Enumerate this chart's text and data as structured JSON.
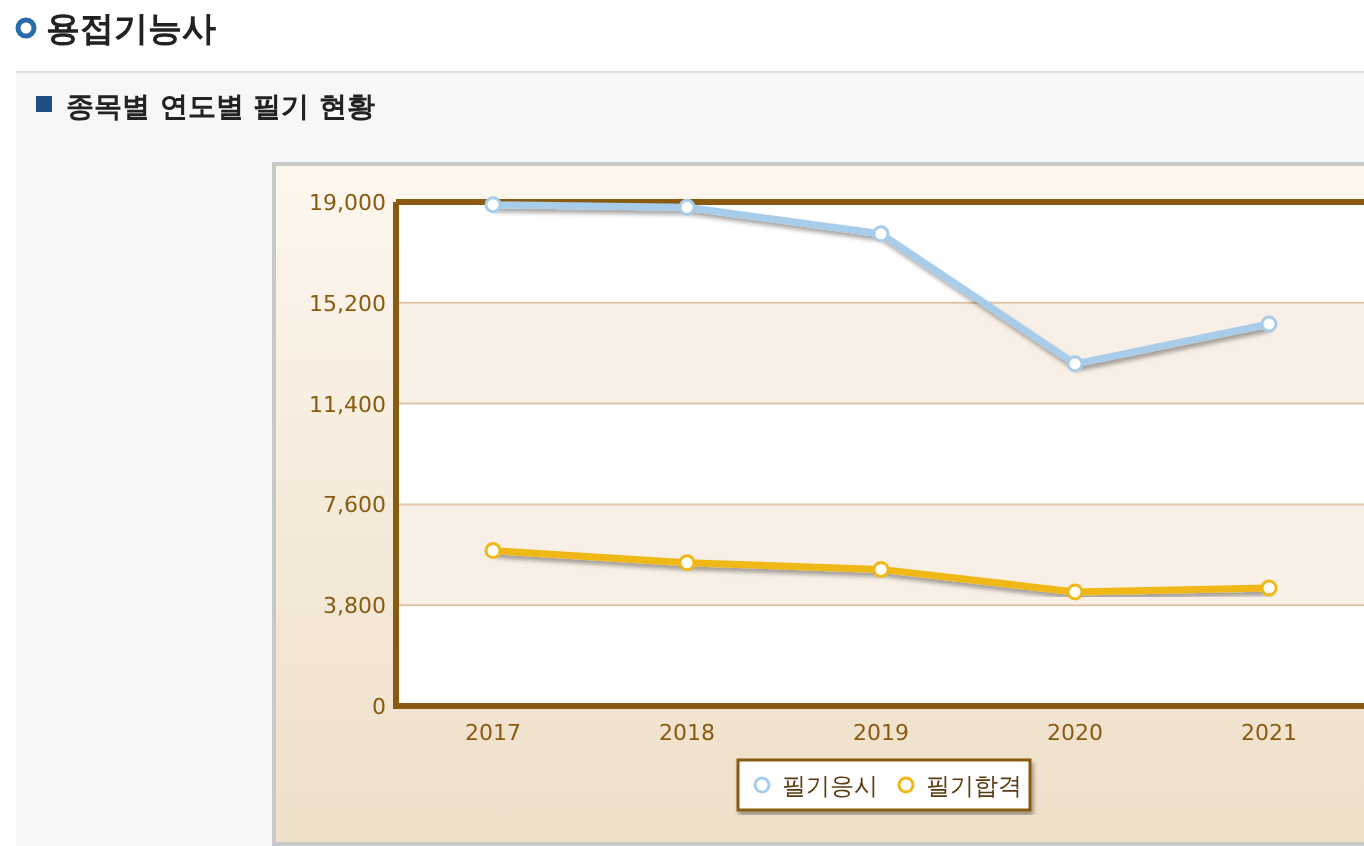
{
  "chart_data": {
    "type": "line",
    "title": "용접기능사",
    "subtitle": "종목별 연도별 필기 현황",
    "categories": [
      "2017",
      "2018",
      "2019",
      "2020",
      "2021"
    ],
    "series": [
      {
        "name": "필기응시",
        "color": "#a8cdea",
        "values": [
          18900,
          18800,
          17800,
          12900,
          14400
        ]
      },
      {
        "name": "필기합격",
        "color": "#f0b818",
        "values": [
          5860,
          5400,
          5150,
          4300,
          4450
        ]
      }
    ],
    "ylim": [
      0,
      19000
    ],
    "yticks": [
      {
        "value": 0,
        "label": "0"
      },
      {
        "value": 3800,
        "label": "3,800"
      },
      {
        "value": 7600,
        "label": "7,600"
      },
      {
        "value": 11400,
        "label": "11,400"
      },
      {
        "value": 15200,
        "label": "15,200"
      },
      {
        "value": 19000,
        "label": "19,000"
      }
    ],
    "grid": "y",
    "legend": "bottom",
    "marker": "circle",
    "line_style": "solid"
  }
}
